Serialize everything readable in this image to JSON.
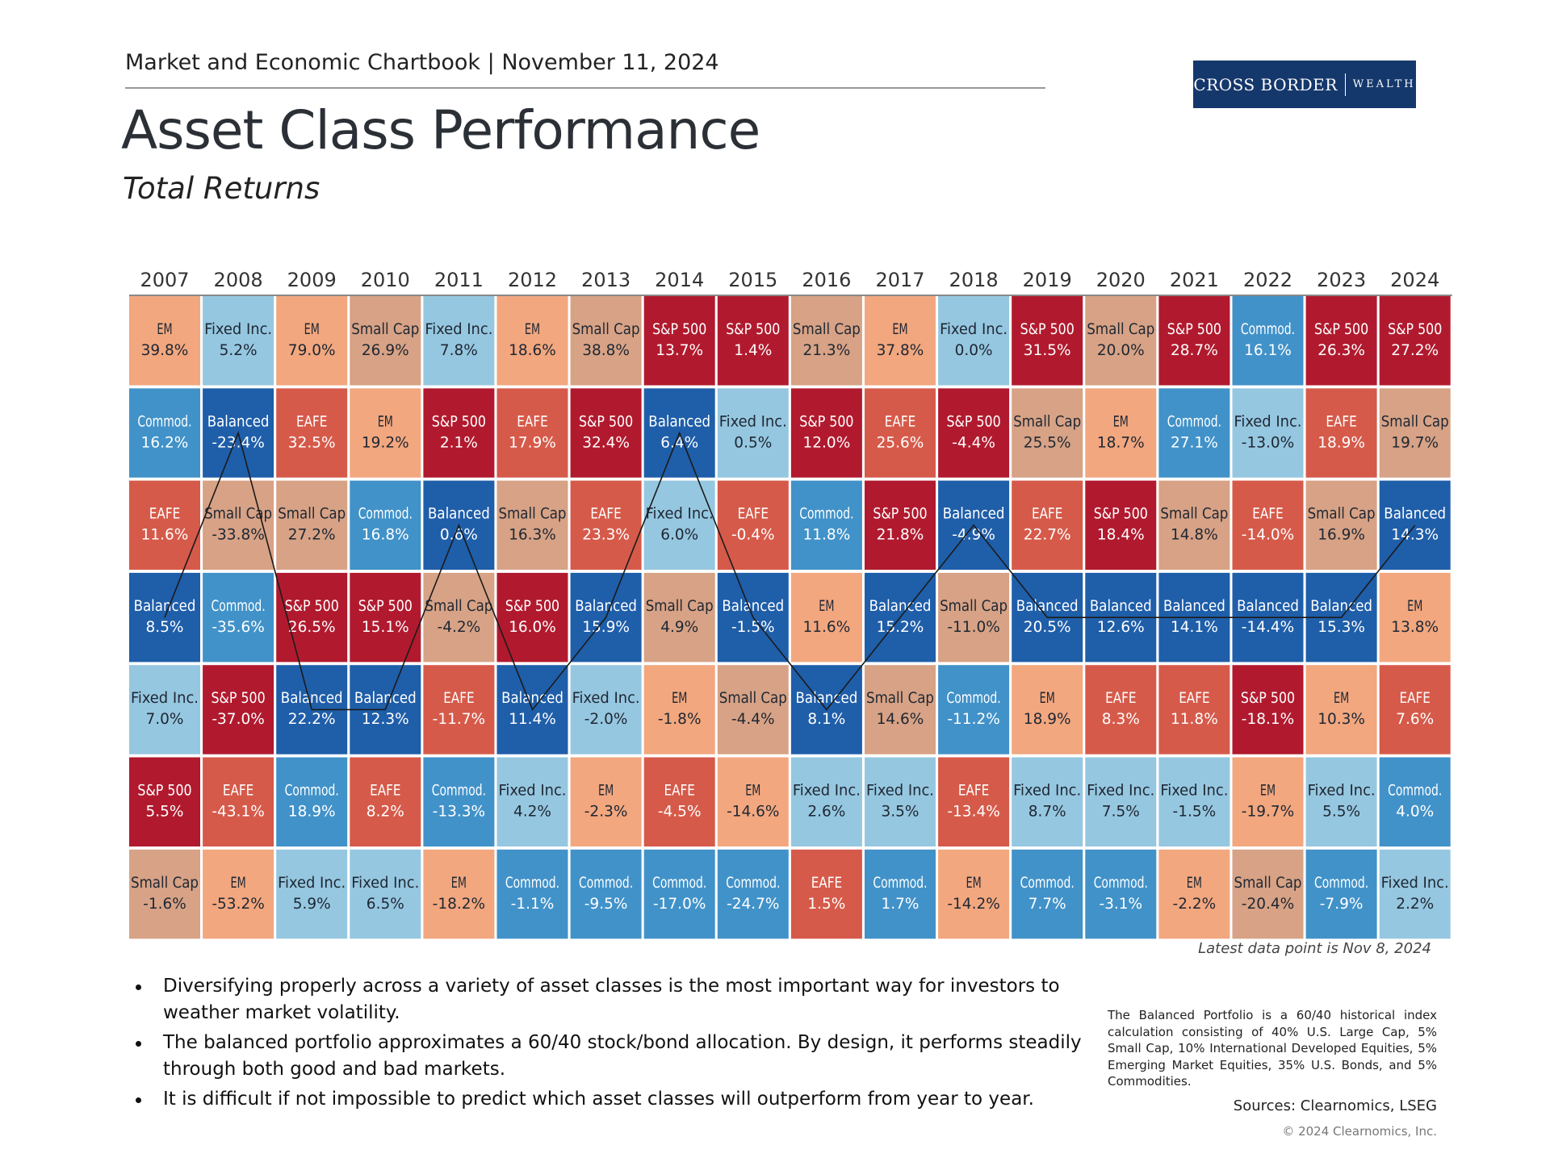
{
  "header": {
    "chartbook": "Market and Economic Chartbook | November 11, 2024",
    "logo_main": "CROSS BORDER",
    "logo_sub": "WEALTH",
    "title": "Asset Class Performance",
    "subtitle": "Total Returns"
  },
  "colors": {
    "S&P 500": "#b11a2e",
    "Small Cap": "#d7a285",
    "EM": "#f2a77f",
    "EAFE": "#d65a4a",
    "Fixed Inc.": "#96c7e0",
    "Commod.": "#4192c9",
    "Balanced": "#1f5ea9"
  },
  "chart_data": {
    "type": "table",
    "years": [
      "2007",
      "2008",
      "2009",
      "2010",
      "2011",
      "2012",
      "2013",
      "2014",
      "2015",
      "2016",
      "2017",
      "2018",
      "2019",
      "2020",
      "2021",
      "2022",
      "2023",
      "2024"
    ],
    "columns": [
      [
        [
          "EM",
          "39.8%"
        ],
        [
          "Commod.",
          "16.2%"
        ],
        [
          "EAFE",
          "11.6%"
        ],
        [
          "Balanced",
          "8.5%"
        ],
        [
          "Fixed Inc.",
          "7.0%"
        ],
        [
          "S&P 500",
          "5.5%"
        ],
        [
          "Small Cap",
          "-1.6%"
        ]
      ],
      [
        [
          "Fixed Inc.",
          "5.2%"
        ],
        [
          "Balanced",
          "-23.4%"
        ],
        [
          "Small Cap",
          "-33.8%"
        ],
        [
          "Commod.",
          "-35.6%"
        ],
        [
          "S&P 500",
          "-37.0%"
        ],
        [
          "EAFE",
          "-43.1%"
        ],
        [
          "EM",
          "-53.2%"
        ]
      ],
      [
        [
          "EM",
          "79.0%"
        ],
        [
          "EAFE",
          "32.5%"
        ],
        [
          "Small Cap",
          "27.2%"
        ],
        [
          "S&P 500",
          "26.5%"
        ],
        [
          "Balanced",
          "22.2%"
        ],
        [
          "Commod.",
          "18.9%"
        ],
        [
          "Fixed Inc.",
          "5.9%"
        ]
      ],
      [
        [
          "Small Cap",
          "26.9%"
        ],
        [
          "EM",
          "19.2%"
        ],
        [
          "Commod.",
          "16.8%"
        ],
        [
          "S&P 500",
          "15.1%"
        ],
        [
          "Balanced",
          "12.3%"
        ],
        [
          "EAFE",
          "8.2%"
        ],
        [
          "Fixed Inc.",
          "6.5%"
        ]
      ],
      [
        [
          "Fixed Inc.",
          "7.8%"
        ],
        [
          "S&P 500",
          "2.1%"
        ],
        [
          "Balanced",
          "0.6%"
        ],
        [
          "Small Cap",
          "-4.2%"
        ],
        [
          "EAFE",
          "-11.7%"
        ],
        [
          "Commod.",
          "-13.3%"
        ],
        [
          "EM",
          "-18.2%"
        ]
      ],
      [
        [
          "EM",
          "18.6%"
        ],
        [
          "EAFE",
          "17.9%"
        ],
        [
          "Small Cap",
          "16.3%"
        ],
        [
          "S&P 500",
          "16.0%"
        ],
        [
          "Balanced",
          "11.4%"
        ],
        [
          "Fixed Inc.",
          "4.2%"
        ],
        [
          "Commod.",
          "-1.1%"
        ]
      ],
      [
        [
          "Small Cap",
          "38.8%"
        ],
        [
          "S&P 500",
          "32.4%"
        ],
        [
          "EAFE",
          "23.3%"
        ],
        [
          "Balanced",
          "15.9%"
        ],
        [
          "Fixed Inc.",
          "-2.0%"
        ],
        [
          "EM",
          "-2.3%"
        ],
        [
          "Commod.",
          "-9.5%"
        ]
      ],
      [
        [
          "S&P 500",
          "13.7%"
        ],
        [
          "Balanced",
          "6.4%"
        ],
        [
          "Fixed Inc.",
          "6.0%"
        ],
        [
          "Small Cap",
          "4.9%"
        ],
        [
          "EM",
          "-1.8%"
        ],
        [
          "EAFE",
          "-4.5%"
        ],
        [
          "Commod.",
          "-17.0%"
        ]
      ],
      [
        [
          "S&P 500",
          "1.4%"
        ],
        [
          "Fixed Inc.",
          "0.5%"
        ],
        [
          "EAFE",
          "-0.4%"
        ],
        [
          "Balanced",
          "-1.5%"
        ],
        [
          "Small Cap",
          "-4.4%"
        ],
        [
          "EM",
          "-14.6%"
        ],
        [
          "Commod.",
          "-24.7%"
        ]
      ],
      [
        [
          "Small Cap",
          "21.3%"
        ],
        [
          "S&P 500",
          "12.0%"
        ],
        [
          "Commod.",
          "11.8%"
        ],
        [
          "EM",
          "11.6%"
        ],
        [
          "Balanced",
          "8.1%"
        ],
        [
          "Fixed Inc.",
          "2.6%"
        ],
        [
          "EAFE",
          "1.5%"
        ]
      ],
      [
        [
          "EM",
          "37.8%"
        ],
        [
          "EAFE",
          "25.6%"
        ],
        [
          "S&P 500",
          "21.8%"
        ],
        [
          "Balanced",
          "15.2%"
        ],
        [
          "Small Cap",
          "14.6%"
        ],
        [
          "Fixed Inc.",
          "3.5%"
        ],
        [
          "Commod.",
          "1.7%"
        ]
      ],
      [
        [
          "Fixed Inc.",
          "0.0%"
        ],
        [
          "S&P 500",
          "-4.4%"
        ],
        [
          "Balanced",
          "-4.9%"
        ],
        [
          "Small Cap",
          "-11.0%"
        ],
        [
          "Commod.",
          "-11.2%"
        ],
        [
          "EAFE",
          "-13.4%"
        ],
        [
          "EM",
          "-14.2%"
        ]
      ],
      [
        [
          "S&P 500",
          "31.5%"
        ],
        [
          "Small Cap",
          "25.5%"
        ],
        [
          "EAFE",
          "22.7%"
        ],
        [
          "Balanced",
          "20.5%"
        ],
        [
          "EM",
          "18.9%"
        ],
        [
          "Fixed Inc.",
          "8.7%"
        ],
        [
          "Commod.",
          "7.7%"
        ]
      ],
      [
        [
          "Small Cap",
          "20.0%"
        ],
        [
          "EM",
          "18.7%"
        ],
        [
          "S&P 500",
          "18.4%"
        ],
        [
          "Balanced",
          "12.6%"
        ],
        [
          "EAFE",
          "8.3%"
        ],
        [
          "Fixed Inc.",
          "7.5%"
        ],
        [
          "Commod.",
          "-3.1%"
        ]
      ],
      [
        [
          "S&P 500",
          "28.7%"
        ],
        [
          "Commod.",
          "27.1%"
        ],
        [
          "Small Cap",
          "14.8%"
        ],
        [
          "Balanced",
          "14.1%"
        ],
        [
          "EAFE",
          "11.8%"
        ],
        [
          "Fixed Inc.",
          "-1.5%"
        ],
        [
          "EM",
          "-2.2%"
        ]
      ],
      [
        [
          "Commod.",
          "16.1%"
        ],
        [
          "Fixed Inc.",
          "-13.0%"
        ],
        [
          "EAFE",
          "-14.0%"
        ],
        [
          "Balanced",
          "-14.4%"
        ],
        [
          "S&P 500",
          "-18.1%"
        ],
        [
          "EM",
          "-19.7%"
        ],
        [
          "Small Cap",
          "-20.4%"
        ]
      ],
      [
        [
          "S&P 500",
          "26.3%"
        ],
        [
          "EAFE",
          "18.9%"
        ],
        [
          "Small Cap",
          "16.9%"
        ],
        [
          "Balanced",
          "15.3%"
        ],
        [
          "EM",
          "10.3%"
        ],
        [
          "Fixed Inc.",
          "5.5%"
        ],
        [
          "Commod.",
          "-7.9%"
        ]
      ],
      [
        [
          "S&P 500",
          "27.2%"
        ],
        [
          "Small Cap",
          "19.7%"
        ],
        [
          "Balanced",
          "14.3%"
        ],
        [
          "EM",
          "13.8%"
        ],
        [
          "EAFE",
          "7.6%"
        ],
        [
          "Commod.",
          "4.0%"
        ],
        [
          "Fixed Inc.",
          "2.2%"
        ]
      ]
    ],
    "highlight_series": "Balanced"
  },
  "note": "Latest data point is Nov 8, 2024",
  "bullets": [
    "Diversifying properly across a variety of asset classes is the most important way for investors to weather market volatility.",
    "The balanced portfolio approximates a 60/40 stock/bond allocation. By design, it performs steadily through both good and bad markets.",
    "It is difficult if not impossible to predict which asset classes will outperform from year to year."
  ],
  "footnote": "The Balanced Portfolio is a 60/40 historical index calculation consisting of 40% U.S. Large Cap, 5% Small Cap, 10% International Developed Equities, 5% Emerging Market Equities, 35% U.S. Bonds, and 5% Commodities.",
  "sources": "Sources: Clearnomics, LSEG",
  "copyright": "© 2024 Clearnomics, Inc."
}
